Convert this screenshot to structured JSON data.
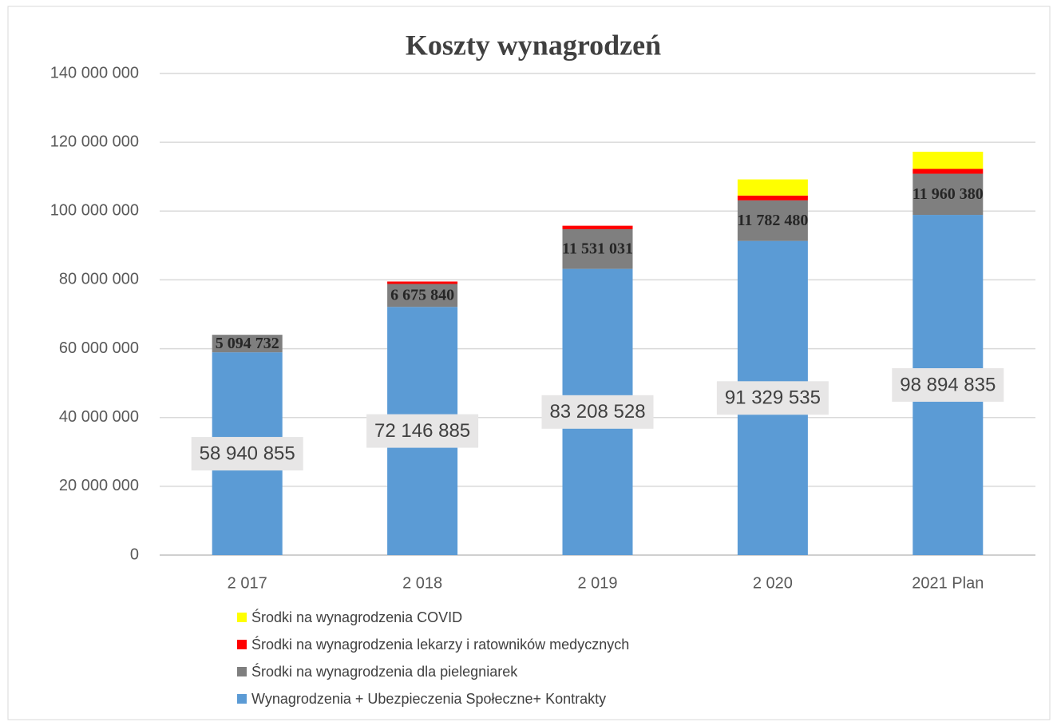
{
  "chart_data": {
    "type": "stacked-bar",
    "title": "Koszty wynagrodzeń",
    "categories": [
      "2 017",
      "2 018",
      "2 019",
      "2 020",
      "2021 Plan"
    ],
    "series": [
      {
        "name": "Wynagrodzenia + Ubezpieczenia Społeczne+ Kontrakty",
        "color": "#5b9bd5",
        "values": [
          58940855,
          72146885,
          83208528,
          91329535,
          98894835
        ],
        "value_labels": [
          "58 940 855",
          "72 146 885",
          "83 208 528",
          "91 329 535",
          "98 894 835"
        ]
      },
      {
        "name": "Środki na wynagrodzenia dla pielegniarek",
        "color": "#7f7f7f",
        "values": [
          5094732,
          6675840,
          11531031,
          11782480,
          11960380
        ],
        "value_labels": [
          "5 094 732",
          "6 675 840",
          "11 531 031",
          "11 782 480",
          "11 960 380"
        ]
      },
      {
        "name": "Środki na wynagrodzenia lekarzy i ratowników medycznych",
        "color": "#ff0000",
        "values": [
          0,
          700000,
          1000000,
          1400000,
          1400000
        ]
      },
      {
        "name": "Środki na wynagrodzenia COVID",
        "color": "#ffff00",
        "values": [
          0,
          0,
          0,
          4700000,
          5000000
        ]
      }
    ],
    "ylim": [
      0,
      140000000
    ],
    "yticks": [
      0,
      {
        "value": 20000000,
        "label": "20 000 000"
      },
      {
        "value": 40000000,
        "label": "40 000 000"
      },
      {
        "value": 60000000,
        "label": "60 000 000"
      },
      {
        "value": 80000000,
        "label": "80 000 000"
      },
      {
        "value": 100000000,
        "label": "100 000 000"
      },
      {
        "value": 120000000,
        "label": "120 000 000"
      },
      {
        "value": 140000000,
        "label": "140 000 000"
      }
    ],
    "grid": true,
    "legend": "bottom"
  }
}
